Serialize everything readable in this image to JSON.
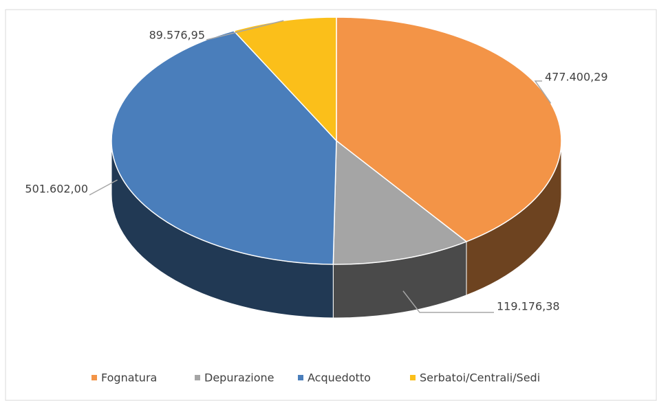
{
  "chart_data": {
    "type": "pie3d",
    "categories": [
      "Fognatura",
      "Depurazione",
      "Acquedotto",
      "Serbatoi/Centrali/Sedi"
    ],
    "values": [
      477400.29,
      119176.38,
      501602.0,
      89576.95
    ],
    "value_labels": [
      "477.400,29",
      "119.176,38",
      "501.602,00",
      "89.576,95"
    ],
    "colors": [
      "#f39447",
      "#a5a5a5",
      "#4a7ebb",
      "#fbbf1a"
    ],
    "legend": "bottom"
  }
}
